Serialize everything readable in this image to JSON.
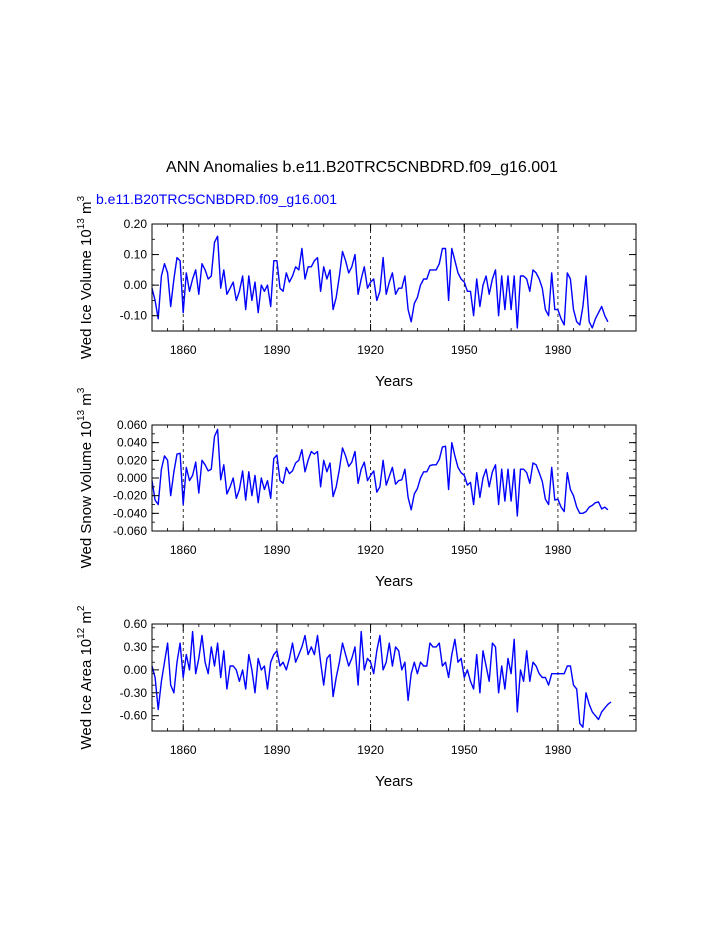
{
  "figure": {
    "title": "ANN Anomalies b.e11.B20TRC5CNBDRD.f09_g16.001",
    "series_label": "b.e11.B20TRC5CNBDRD.f09_g16.001",
    "line_color": "#0000ff",
    "reference_years": [
      1860,
      1890,
      1920,
      1950,
      1980
    ]
  },
  "chart_data": [
    {
      "type": "line",
      "name": "ice-volume",
      "title": "ANN Anomalies b.e11.B20TRC5CNBDRD.f09_g16.001",
      "xlabel": "Years",
      "ylabel": "Wed Ice Volume 10",
      "ylabel_exp": "13",
      "ylabel_unit": " m",
      "ylabel_unit_exp": "3",
      "xlim": [
        1850,
        2005
      ],
      "ylim": [
        -0.15,
        0.2
      ],
      "xticks": [
        1860,
        1890,
        1920,
        1950,
        1980
      ],
      "yticks": [
        -0.1,
        0.0,
        0.1,
        0.2
      ],
      "ytick_labels": [
        "-0.10",
        "0.00",
        "0.10",
        "0.20"
      ],
      "grid": "vertical dashed at x ticks",
      "x_start": 1850,
      "values": [
        -0.01,
        -0.05,
        -0.11,
        0.03,
        0.07,
        0.04,
        -0.07,
        0.02,
        0.09,
        0.08,
        -0.09,
        0.04,
        -0.02,
        0.02,
        0.05,
        -0.03,
        0.07,
        0.05,
        0.02,
        0.03,
        0.14,
        0.16,
        -0.01,
        0.05,
        -0.03,
        -0.01,
        0.01,
        -0.05,
        -0.02,
        0.03,
        -0.08,
        0.03,
        -0.05,
        0.01,
        -0.09,
        0.0,
        -0.02,
        0.0,
        -0.07,
        0.08,
        0.08,
        -0.01,
        -0.02,
        0.04,
        0.01,
        0.03,
        0.06,
        0.05,
        0.12,
        0.02,
        0.06,
        0.06,
        0.08,
        0.09,
        -0.02,
        0.06,
        0.02,
        0.05,
        -0.08,
        -0.04,
        0.03,
        0.11,
        0.08,
        0.04,
        0.06,
        0.1,
        -0.03,
        0.02,
        0.06,
        -0.01,
        0.01,
        0.02,
        -0.05,
        -0.02,
        0.09,
        -0.03,
        0.01,
        0.04,
        -0.03,
        -0.01,
        -0.01,
        0.03,
        -0.08,
        -0.12,
        -0.06,
        -0.04,
        0.0,
        0.02,
        0.02,
        0.05,
        0.05,
        0.05,
        0.07,
        0.12,
        0.12,
        -0.05,
        0.12,
        0.08,
        0.04,
        0.02,
        0.01,
        -0.02,
        -0.02,
        -0.1,
        0.02,
        -0.07,
        0.0,
        0.03,
        -0.03,
        0.02,
        0.05,
        -0.1,
        0.03,
        -0.08,
        0.03,
        -0.08,
        0.03,
        -0.14,
        0.03,
        0.03,
        0.02,
        -0.02,
        0.05,
        0.04,
        0.02,
        -0.01,
        -0.08,
        -0.1,
        0.04,
        -0.08,
        -0.08,
        -0.11,
        -0.13,
        0.04,
        0.02,
        -0.08,
        -0.12,
        -0.13,
        -0.07,
        0.03,
        -0.12,
        -0.14,
        -0.11,
        -0.09,
        -0.07,
        -0.1,
        -0.12
      ]
    },
    {
      "type": "line",
      "name": "snow-volume",
      "xlabel": "Years",
      "ylabel": "Wed Snow Volume 10",
      "ylabel_exp": "13",
      "ylabel_unit": " m",
      "ylabel_unit_exp": "3",
      "xlim": [
        1850,
        2005
      ],
      "ylim": [
        -0.06,
        0.06
      ],
      "xticks": [
        1860,
        1890,
        1920,
        1950,
        1980
      ],
      "yticks": [
        -0.06,
        -0.04,
        -0.02,
        0.0,
        0.02,
        0.04,
        0.06
      ],
      "ytick_labels": [
        "-0.060",
        "-0.040",
        "-0.020",
        "0.000",
        "0.020",
        "0.040",
        "0.060"
      ],
      "grid": "vertical dashed at x ticks",
      "x_start": 1850,
      "values": [
        -0.003,
        -0.025,
        -0.03,
        0.01,
        0.025,
        0.02,
        -0.02,
        0.007,
        0.027,
        0.028,
        -0.03,
        0.012,
        -0.003,
        0.003,
        0.018,
        -0.017,
        0.02,
        0.015,
        0.008,
        0.01,
        0.047,
        0.055,
        -0.002,
        0.015,
        -0.018,
        -0.01,
        0.0,
        -0.023,
        -0.013,
        0.008,
        -0.025,
        0.007,
        -0.02,
        0.003,
        -0.028,
        0.0,
        -0.013,
        -0.003,
        -0.023,
        0.022,
        0.026,
        -0.003,
        -0.006,
        0.012,
        0.005,
        0.008,
        0.017,
        0.02,
        0.032,
        0.007,
        0.02,
        0.03,
        0.027,
        0.03,
        -0.01,
        0.02,
        0.007,
        0.017,
        -0.021,
        -0.01,
        0.01,
        0.034,
        0.025,
        0.013,
        0.018,
        0.03,
        -0.006,
        0.01,
        0.018,
        -0.003,
        0.003,
        0.008,
        -0.016,
        -0.01,
        0.02,
        -0.008,
        0.002,
        0.012,
        -0.007,
        -0.003,
        -0.002,
        0.01,
        -0.022,
        -0.036,
        -0.018,
        -0.012,
        0.0,
        0.007,
        0.007,
        0.014,
        0.015,
        0.015,
        0.021,
        0.035,
        0.036,
        -0.013,
        0.04,
        0.025,
        0.012,
        0.006,
        0.003,
        -0.008,
        -0.005,
        -0.03,
        0.006,
        -0.022,
        0.0,
        0.01,
        -0.01,
        0.007,
        0.015,
        -0.03,
        0.01,
        -0.026,
        0.01,
        -0.026,
        0.01,
        -0.043,
        0.01,
        0.01,
        0.006,
        -0.006,
        0.017,
        0.015,
        0.006,
        -0.004,
        -0.024,
        -0.03,
        0.012,
        -0.025,
        -0.024,
        -0.033,
        -0.038,
        0.006,
        -0.013,
        -0.02,
        -0.033,
        -0.04,
        -0.04,
        -0.038,
        -0.033,
        -0.031,
        -0.028,
        -0.027,
        -0.035,
        -0.033,
        -0.036
      ]
    },
    {
      "type": "line",
      "name": "ice-area",
      "xlabel": "Years",
      "ylabel": "Wed Ice Area 10",
      "ylabel_exp": "12",
      "ylabel_unit": " m",
      "ylabel_unit_exp": "2",
      "xlim": [
        1850,
        2005
      ],
      "ylim": [
        -0.8,
        0.6
      ],
      "xticks": [
        1860,
        1890,
        1920,
        1950,
        1980
      ],
      "yticks": [
        -0.6,
        -0.3,
        0.0,
        0.3,
        0.6
      ],
      "ytick_labels": [
        "-0.60",
        "-0.30",
        "0.00",
        "0.30",
        "0.60"
      ],
      "grid": "vertical dashed at x ticks",
      "x_start": 1850,
      "values": [
        0.05,
        -0.1,
        -0.52,
        -0.15,
        0.1,
        0.35,
        -0.2,
        -0.3,
        0.1,
        0.35,
        -0.1,
        0.2,
        0.0,
        0.5,
        -0.05,
        0.15,
        0.45,
        0.1,
        -0.05,
        0.3,
        0.05,
        0.35,
        -0.1,
        0.25,
        -0.25,
        0.05,
        0.05,
        0.0,
        -0.15,
        0.0,
        -0.25,
        0.2,
        0.0,
        -0.3,
        0.15,
        0.0,
        0.05,
        -0.25,
        0.1,
        0.2,
        0.25,
        0.05,
        0.1,
        0.0,
        0.15,
        0.35,
        0.1,
        0.2,
        0.3,
        0.45,
        0.2,
        0.3,
        0.2,
        0.45,
        0.1,
        -0.2,
        0.15,
        0.2,
        -0.35,
        -0.1,
        0.1,
        0.35,
        0.2,
        0.05,
        0.15,
        0.3,
        -0.2,
        0.5,
        0.0,
        0.15,
        0.1,
        -0.05,
        0.25,
        0.45,
        0.0,
        0.1,
        0.35,
        0.05,
        0.3,
        0.25,
        0.0,
        0.1,
        -0.4,
        -0.05,
        0.1,
        -0.05,
        0.1,
        0.05,
        0.05,
        0.35,
        0.3,
        0.3,
        0.35,
        0.05,
        0.1,
        -0.1,
        0.2,
        0.4,
        0.1,
        0.15,
        -0.1,
        0.0,
        -0.15,
        -0.25,
        0.2,
        -0.3,
        0.25,
        0.05,
        -0.15,
        0.35,
        0.3,
        -0.3,
        0.05,
        -0.25,
        0.15,
        -0.05,
        0.4,
        -0.55,
        0.0,
        -0.15,
        0.25,
        -0.15,
        0.1,
        0.05,
        -0.05,
        -0.1,
        -0.1,
        -0.2,
        -0.05,
        -0.05,
        -0.05,
        -0.05,
        -0.05,
        0.05,
        0.05,
        -0.2,
        -0.25,
        -0.7,
        -0.75,
        -0.3,
        -0.45,
        -0.55,
        -0.6,
        -0.65,
        -0.55,
        -0.5,
        -0.45,
        -0.42
      ]
    }
  ]
}
